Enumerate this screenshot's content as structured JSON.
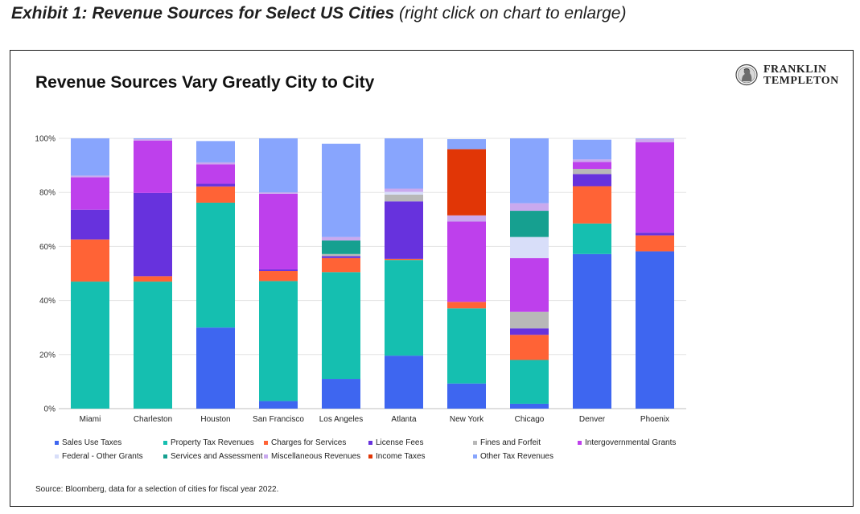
{
  "exhibit": {
    "label_bold": "Exhibit 1: Revenue Sources for Select US Cities",
    "label_note": "(right click on chart to enlarge)"
  },
  "logo": {
    "line1": "FRANKLIN",
    "line2": "TEMPLETON",
    "icon": "franklin-portrait-icon"
  },
  "source": "Source: Bloomberg, data for a selection of cities for fiscal year 2022.",
  "chart_data": {
    "type": "bar",
    "stacked": true,
    "title": "Revenue Sources Vary Greatly City to City",
    "xlabel": "",
    "ylabel": "",
    "ylim": [
      0,
      100
    ],
    "ytick_labels": [
      "0%",
      "20%",
      "40%",
      "60%",
      "80%",
      "100%"
    ],
    "grid": true,
    "legend_position": "bottom",
    "categories": [
      "Miami",
      "Charleston",
      "Houston",
      "San Francisco",
      "Los Angeles",
      "Atlanta",
      "New York",
      "Chicago",
      "Denver",
      "Phoenix"
    ],
    "series": [
      {
        "name": "Sales Use Taxes",
        "color": "#3e66f0",
        "values": [
          0,
          0,
          30,
          2.8,
          11,
          19.6,
          9.3,
          1.8,
          57.2,
          58.2
        ]
      },
      {
        "name": "Property Tax Revenues",
        "color": "#15bfb0",
        "values": [
          47,
          47,
          46.2,
          44.4,
          39.5,
          35.4,
          27.8,
          16.2,
          11.3,
          0
        ]
      },
      {
        "name": "Charges for Services",
        "color": "#ff6336",
        "values": [
          15.6,
          2,
          6,
          3.7,
          5.2,
          0.4,
          2.4,
          9.3,
          13.8,
          5.9
        ]
      },
      {
        "name": "License Fees",
        "color": "#6732dd",
        "values": [
          11,
          30.8,
          1,
          0.6,
          0.7,
          21.3,
          0,
          2.4,
          4.5,
          1
        ]
      },
      {
        "name": "Fines and Forfeit",
        "color": "#b8b8b8",
        "values": [
          0,
          0,
          0,
          0,
          0.8,
          2.5,
          0,
          6.1,
          1.9,
          0
        ]
      },
      {
        "name": "Intergovernmental Grants",
        "color": "#be40ec",
        "values": [
          12,
          19.4,
          7.2,
          28,
          0,
          0,
          29.7,
          19.9,
          2.6,
          33.5
        ]
      },
      {
        "name": "Federal - Other Grants",
        "color": "#d8def9",
        "values": [
          0,
          0,
          0,
          0,
          0,
          1,
          0,
          7.8,
          0,
          0
        ]
      },
      {
        "name": "Services and Assessment",
        "color": "#16a090",
        "values": [
          0,
          0,
          0,
          0,
          5,
          0,
          0,
          9.7,
          0,
          0
        ]
      },
      {
        "name": "Miscellaneous Revenues",
        "color": "#c9a9ee",
        "values": [
          0.6,
          0.5,
          0.7,
          0.5,
          1.3,
          1.2,
          2.3,
          2.8,
          0.9,
          1.2
        ]
      },
      {
        "name": "Income Taxes",
        "color": "#e13606",
        "values": [
          0,
          0,
          0,
          0,
          0,
          0,
          24.5,
          0,
          0,
          0
        ]
      },
      {
        "name": "Other Tax Revenues",
        "color": "#88a5fd",
        "values": [
          13.8,
          0.3,
          7.9,
          20,
          34.5,
          18.6,
          3.7,
          24,
          7.3,
          0.2
        ]
      }
    ]
  }
}
